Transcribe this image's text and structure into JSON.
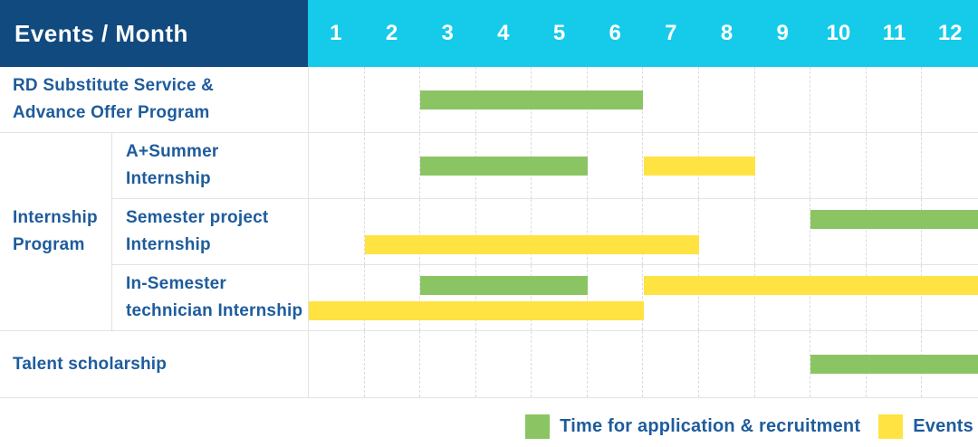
{
  "header": {
    "title": "Events / Month",
    "months": [
      "1",
      "2",
      "3",
      "4",
      "5",
      "6",
      "7",
      "8",
      "9",
      "10",
      "11",
      "12"
    ]
  },
  "group": {
    "label_lines": [
      "Internship",
      "Program"
    ]
  },
  "rows": [
    {
      "id": "rd-substitute-advance-offer",
      "type": "full",
      "label_lines": [
        "RD Substitute Service &",
        "Advance Offer Program"
      ],
      "bars": [
        {
          "color": "green",
          "start": 3,
          "end": 6,
          "line": "center"
        }
      ]
    },
    {
      "id": "a-plus-summer-internship",
      "type": "sub",
      "label_lines": [
        "A+Summer",
        "Internship"
      ],
      "bars": [
        {
          "color": "green",
          "start": 3,
          "end": 5,
          "line": "center"
        },
        {
          "color": "yellow",
          "start": 7,
          "end": 8,
          "line": "center"
        }
      ]
    },
    {
      "id": "semester-project-internship",
      "type": "sub",
      "label_lines": [
        "Semester project",
        "Internship"
      ],
      "bars": [
        {
          "color": "green",
          "start": 10,
          "end": 12,
          "line": "top"
        },
        {
          "color": "yellow",
          "start": 2,
          "end": 7,
          "line": "bottom"
        }
      ]
    },
    {
      "id": "in-semester-technician-internship",
      "type": "sub",
      "label_lines": [
        "In-Semester",
        "technician Internship"
      ],
      "bars": [
        {
          "color": "green",
          "start": 3,
          "end": 5,
          "line": "top"
        },
        {
          "color": "yellow",
          "start": 7,
          "end": 12,
          "line": "top"
        },
        {
          "color": "yellow",
          "start": 1,
          "end": 6,
          "line": "bottom"
        }
      ]
    },
    {
      "id": "talent-scholarship",
      "type": "full",
      "label_lines": [
        "Talent scholarship"
      ],
      "bars": [
        {
          "color": "green",
          "start": 10,
          "end": 12,
          "line": "center"
        }
      ]
    }
  ],
  "legend": {
    "items": [
      {
        "id": "application-recruitment",
        "color": "green",
        "label": "Time for application & recruitment"
      },
      {
        "id": "events",
        "color": "yellow",
        "label": "Events"
      }
    ]
  },
  "colors": {
    "header_bg": "#114A7F",
    "months_bg": "#15CBE9",
    "text_blue": "#1E5C9C",
    "green": "#8BC563",
    "yellow": "#FFE342",
    "border": "#E3E3E3",
    "grid_dash": "#DBDBDB"
  },
  "chart_data": {
    "type": "bar",
    "subtype": "gantt-timeline",
    "title": "Events / Month",
    "x_axis": {
      "label": "Month",
      "ticks": [
        1,
        2,
        3,
        4,
        5,
        6,
        7,
        8,
        9,
        10,
        11,
        12
      ],
      "range": [
        1,
        12
      ]
    },
    "grid": "dashed-vertical-month-lines",
    "legend_position": "bottom-right",
    "series_legend": [
      "Time for application & recruitment",
      "Events"
    ],
    "rows": [
      {
        "event": "RD Substitute Service & Advance Offer Program",
        "group": null,
        "spans": [
          {
            "series": "Time for application & recruitment",
            "start_month": 3,
            "end_month": 6
          }
        ]
      },
      {
        "event": "A+Summer Internship",
        "group": "Internship Program",
        "spans": [
          {
            "series": "Time for application & recruitment",
            "start_month": 3,
            "end_month": 5
          },
          {
            "series": "Events",
            "start_month": 7,
            "end_month": 8
          }
        ]
      },
      {
        "event": "Semester project Internship",
        "group": "Internship Program",
        "spans": [
          {
            "series": "Time for application & recruitment",
            "start_month": 10,
            "end_month": 12
          },
          {
            "series": "Events",
            "start_month": 2,
            "end_month": 7
          }
        ]
      },
      {
        "event": "In-Semester technician Internship",
        "group": "Internship Program",
        "spans": [
          {
            "series": "Time for application & recruitment",
            "start_month": 3,
            "end_month": 5
          },
          {
            "series": "Events",
            "start_month": 7,
            "end_month": 12
          },
          {
            "series": "Events",
            "start_month": 1,
            "end_month": 6
          }
        ]
      },
      {
        "event": "Talent scholarship",
        "group": null,
        "spans": [
          {
            "series": "Time for application & recruitment",
            "start_month": 10,
            "end_month": 12
          }
        ]
      }
    ]
  }
}
